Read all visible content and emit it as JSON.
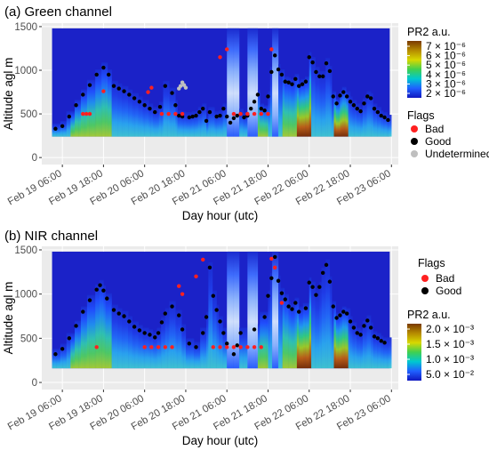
{
  "chart_data": [
    {
      "type": "heatmap",
      "title": "(a) Green channel",
      "xlabel": "Day hour (utc)",
      "ylabel": "Altitude agl m",
      "x_ticks": [
        "Feb 19 06:00",
        "Feb 19 18:00",
        "Feb 20 06:00",
        "Feb 20 18:00",
        "Feb 21 06:00",
        "Feb 21 18:00",
        "Feb 22 06:00",
        "Feb 22 18:00",
        "Feb 23 06:00"
      ],
      "y_ticks": [
        0,
        500,
        1000,
        1500
      ],
      "xlim_hours_from_feb19_0000": [
        0,
        104
      ],
      "ylim": [
        -80,
        1540
      ],
      "data_ylim": [
        240,
        1480
      ],
      "colorbar": {
        "title": "PR2 a.u.",
        "labels": [
          "7 × 10⁻⁶",
          "6 × 10⁻⁶",
          "5 × 10⁻⁶",
          "4 × 10⁻⁶",
          "3 × 10⁻⁶",
          "2 × 10⁻⁶"
        ],
        "colors": [
          "#7a3a00",
          "#b58a00",
          "#d8d800",
          "#40d050",
          "#00c8d0",
          "#2060ff",
          "#1018c0"
        ]
      },
      "flags": {
        "title": "Flags",
        "items": [
          {
            "label": "Bad",
            "color": "#ff2020"
          },
          {
            "label": "Good",
            "color": "#000000"
          },
          {
            "label": "Undetermined",
            "color": "#bfbfbf"
          }
        ]
      },
      "series": [
        {
          "name": "Good",
          "points": [
            [
              4,
              330
            ],
            [
              6,
              360
            ],
            [
              8,
              470
            ],
            [
              10,
              600
            ],
            [
              12,
              720
            ],
            [
              14,
              830
            ],
            [
              16,
              950
            ],
            [
              18,
              1030
            ],
            [
              19.5,
              950
            ],
            [
              21,
              820
            ],
            [
              22.5,
              790
            ],
            [
              24,
              760
            ],
            [
              25.5,
              720
            ],
            [
              27,
              680
            ],
            [
              28.5,
              640
            ],
            [
              30,
              600
            ],
            [
              31.5,
              560
            ],
            [
              33,
              520
            ],
            [
              34.5,
              580
            ],
            [
              36,
              820
            ],
            [
              38,
              740
            ],
            [
              39,
              600
            ],
            [
              40,
              480
            ],
            [
              41,
              470
            ],
            [
              43,
              460
            ],
            [
              44,
              470
            ],
            [
              45,
              480
            ],
            [
              46,
              520
            ],
            [
              47,
              560
            ],
            [
              48,
              420
            ],
            [
              49,
              520
            ],
            [
              51,
              470
            ],
            [
              52,
              480
            ],
            [
              53,
              560
            ],
            [
              54,
              470
            ],
            [
              55,
              400
            ],
            [
              56,
              450
            ],
            [
              57,
              480
            ],
            [
              58,
              500
            ],
            [
              59,
              460
            ],
            [
              60,
              480
            ],
            [
              61,
              560
            ],
            [
              62,
              640
            ],
            [
              63,
              720
            ],
            [
              64,
              560
            ],
            [
              65,
              540
            ],
            [
              66,
              700
            ],
            [
              67,
              980
            ],
            [
              68,
              1170
            ],
            [
              69,
              1010
            ],
            [
              70,
              950
            ],
            [
              71,
              870
            ],
            [
              72,
              860
            ],
            [
              73,
              840
            ],
            [
              74,
              900
            ],
            [
              75,
              820
            ],
            [
              76,
              840
            ],
            [
              77,
              870
            ],
            [
              78,
              1150
            ],
            [
              79,
              1090
            ],
            [
              80,
              980
            ],
            [
              81,
              930
            ],
            [
              82,
              930
            ],
            [
              83,
              1080
            ],
            [
              84,
              990
            ],
            [
              85,
              700
            ],
            [
              86,
              620
            ],
            [
              87,
              710
            ],
            [
              88,
              750
            ],
            [
              89,
              700
            ],
            [
              90,
              640
            ],
            [
              91,
              600
            ],
            [
              92,
              560
            ],
            [
              93,
              530
            ],
            [
              94,
              620
            ],
            [
              95,
              700
            ],
            [
              96,
              680
            ],
            [
              97,
              560
            ],
            [
              98,
              520
            ],
            [
              99,
              480
            ],
            [
              100,
              460
            ],
            [
              101,
              430
            ]
          ]
        },
        {
          "name": "Bad",
          "points": [
            [
              12,
              500
            ],
            [
              13,
              500
            ],
            [
              14,
              500
            ],
            [
              18,
              760
            ],
            [
              31,
              750
            ],
            [
              32,
              800
            ],
            [
              35,
              500
            ],
            [
              37,
              500
            ],
            [
              39,
              500
            ],
            [
              41,
              500
            ],
            [
              52,
              1150
            ],
            [
              54,
              1240
            ],
            [
              56,
              500
            ],
            [
              58,
              500
            ],
            [
              60,
              500
            ],
            [
              62,
              500
            ],
            [
              64,
              500
            ],
            [
              66,
              500
            ],
            [
              67,
              1240
            ]
          ]
        },
        {
          "name": "Undetermined",
          "points": [
            [
              40,
              790
            ],
            [
              40.5,
              820
            ],
            [
              41,
              860
            ],
            [
              41.5,
              830
            ],
            [
              42,
              800
            ]
          ]
        }
      ]
    },
    {
      "type": "heatmap",
      "title": "(b) NIR channel",
      "xlabel": "Day hour (utc)",
      "ylabel": "Altitude agl m",
      "x_ticks": [
        "Feb 19 06:00",
        "Feb 19 18:00",
        "Feb 20 06:00",
        "Feb 20 18:00",
        "Feb 21 06:00",
        "Feb 21 18:00",
        "Feb 22 06:00",
        "Feb 22 18:00",
        "Feb 23 06:00"
      ],
      "y_ticks": [
        0,
        500,
        1000,
        1500
      ],
      "xlim_hours_from_feb19_0000": [
        0,
        104
      ],
      "ylim": [
        -80,
        1540
      ],
      "data_ylim": [
        160,
        1480
      ],
      "colorbar": {
        "title": "PR2 a.u.",
        "labels": [
          "2.0 × 10⁻³",
          "1.5 × 10⁻³",
          "1.0 × 10⁻³",
          "5.0 × 10⁻²"
        ],
        "colors": [
          "#7a3a00",
          "#b58a00",
          "#d8d800",
          "#40d050",
          "#00c8d0",
          "#2060ff",
          "#1018c0"
        ]
      },
      "flags": {
        "title": "Flags",
        "items": [
          {
            "label": "Bad",
            "color": "#ff2020"
          },
          {
            "label": "Good",
            "color": "#000000"
          }
        ]
      },
      "series": [
        {
          "name": "Good",
          "points": [
            [
              4,
              320
            ],
            [
              6,
              380
            ],
            [
              8,
              500
            ],
            [
              10,
              640
            ],
            [
              12,
              800
            ],
            [
              14,
              930
            ],
            [
              16,
              1050
            ],
            [
              17,
              1100
            ],
            [
              18,
              1040
            ],
            [
              19,
              950
            ],
            [
              21,
              820
            ],
            [
              22.5,
              780
            ],
            [
              24,
              750
            ],
            [
              25.5,
              690
            ],
            [
              27,
              630
            ],
            [
              28.5,
              590
            ],
            [
              30,
              560
            ],
            [
              31.5,
              540
            ],
            [
              33,
              510
            ],
            [
              34,
              560
            ],
            [
              35,
              680
            ],
            [
              36,
              780
            ],
            [
              38,
              860
            ],
            [
              40,
              760
            ],
            [
              41,
              600
            ],
            [
              43,
              440
            ],
            [
              45,
              400
            ],
            [
              47,
              560
            ],
            [
              48,
              740
            ],
            [
              49,
              1300
            ],
            [
              50,
              980
            ],
            [
              51,
              820
            ],
            [
              52,
              690
            ],
            [
              53,
              560
            ],
            [
              54,
              440
            ],
            [
              56,
              320
            ],
            [
              57,
              420
            ],
            [
              58,
              560
            ],
            [
              62,
              600
            ],
            [
              65,
              740
            ],
            [
              66,
              980
            ],
            [
              67,
              1180
            ],
            [
              68,
              1420
            ],
            [
              69,
              1150
            ],
            [
              70,
              1010
            ],
            [
              71,
              940
            ],
            [
              72,
              860
            ],
            [
              73,
              830
            ],
            [
              74,
              900
            ],
            [
              75,
              800
            ],
            [
              77,
              840
            ],
            [
              78,
              1130
            ],
            [
              79,
              1080
            ],
            [
              80,
              990
            ],
            [
              81,
              1080
            ],
            [
              82,
              1240
            ],
            [
              83,
              1330
            ],
            [
              84,
              1140
            ],
            [
              85,
              860
            ],
            [
              86,
              730
            ],
            [
              87,
              760
            ],
            [
              88,
              800
            ],
            [
              89,
              780
            ],
            [
              90,
              690
            ],
            [
              91,
              620
            ],
            [
              92,
              560
            ],
            [
              93,
              540
            ],
            [
              94,
              640
            ],
            [
              95,
              700
            ],
            [
              96,
              620
            ],
            [
              97,
              520
            ],
            [
              98,
              500
            ],
            [
              99,
              470
            ],
            [
              100,
              450
            ]
          ]
        },
        {
          "name": "Bad",
          "points": [
            [
              16,
              400
            ],
            [
              30,
              400
            ],
            [
              32,
              400
            ],
            [
              34,
              400
            ],
            [
              36,
              400
            ],
            [
              38,
              400
            ],
            [
              40,
              1090
            ],
            [
              41,
              1000
            ],
            [
              45,
              1200
            ],
            [
              47,
              1390
            ],
            [
              50,
              400
            ],
            [
              52,
              400
            ],
            [
              54,
              400
            ],
            [
              56,
              400
            ],
            [
              58,
              400
            ],
            [
              60,
              400
            ],
            [
              62,
              400
            ],
            [
              64,
              400
            ],
            [
              67,
              1400
            ],
            [
              68,
              1300
            ],
            [
              70,
              900
            ]
          ]
        }
      ]
    }
  ]
}
